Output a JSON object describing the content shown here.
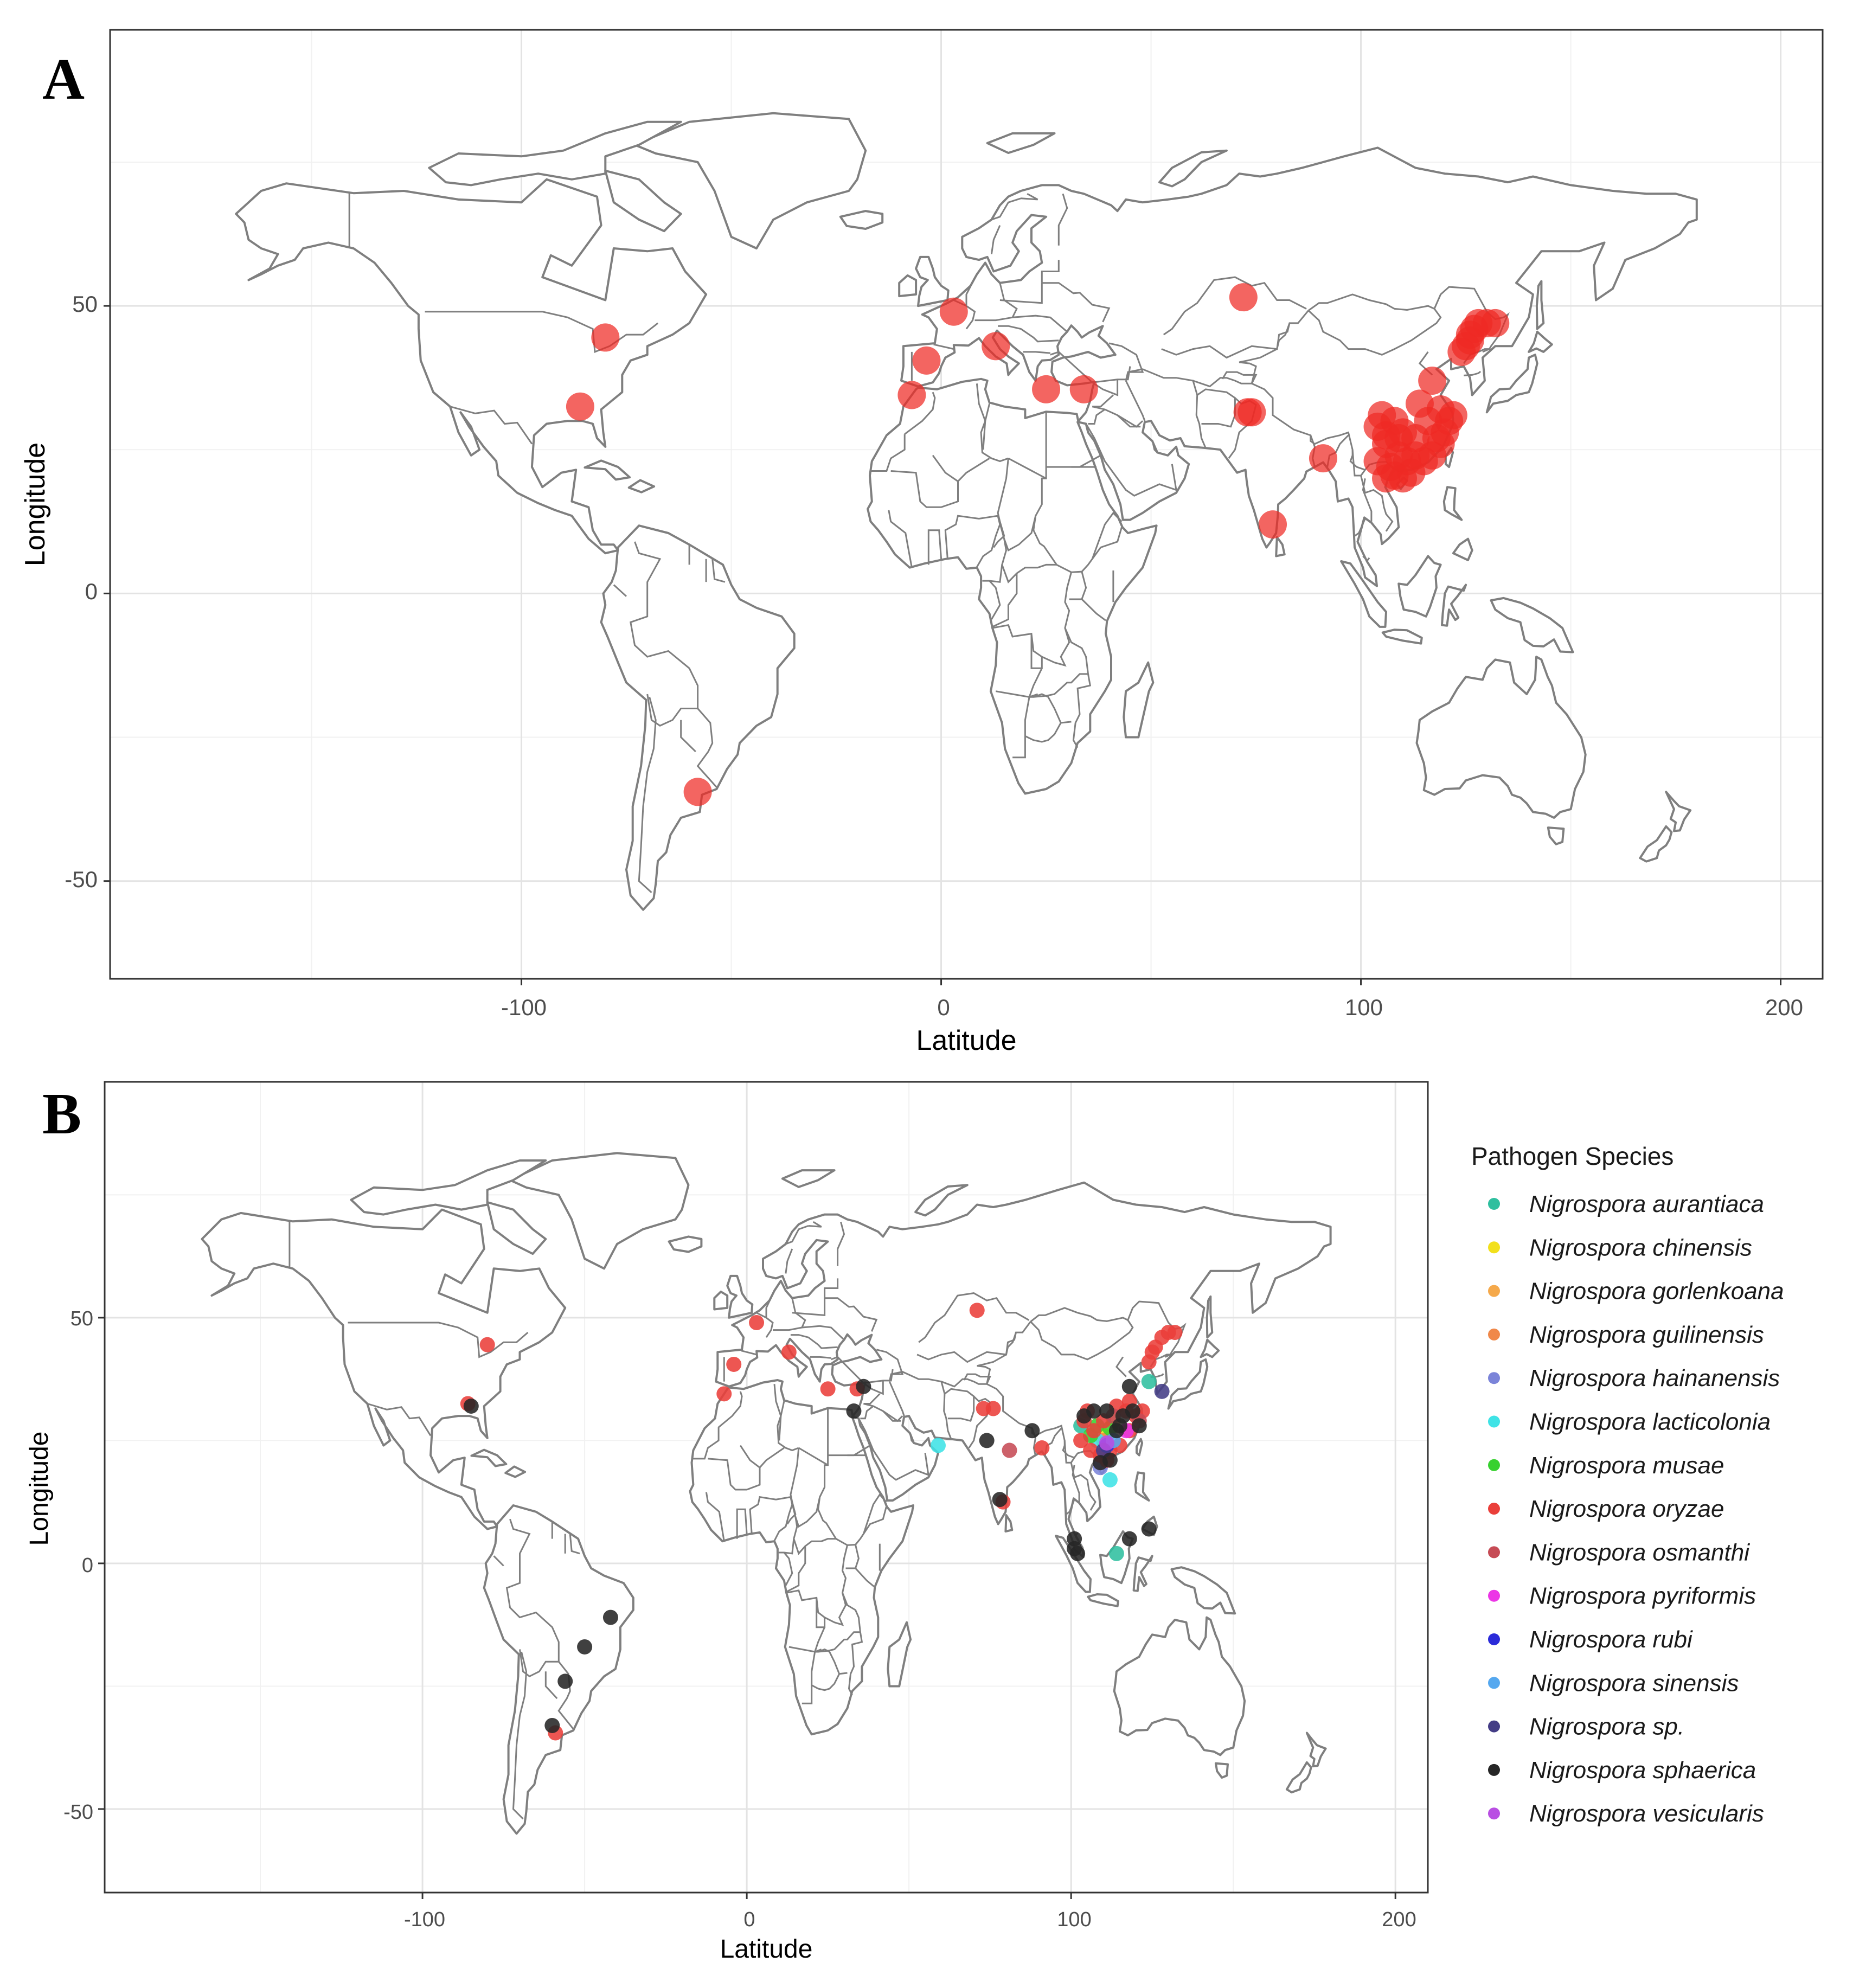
{
  "panels": [
    {
      "letter": "A",
      "xlabel": "Latitude",
      "ylabel": "Longitude",
      "x_ticks": [
        "-100",
        "0",
        "100",
        "200"
      ],
      "y_ticks": [
        "50",
        "0",
        "-50"
      ]
    },
    {
      "letter": "B",
      "xlabel": "Latitude",
      "ylabel": "Longitude",
      "x_ticks": [
        "-100",
        "0",
        "100",
        "200"
      ],
      "y_ticks": [
        "50",
        "0",
        "-50"
      ]
    }
  ],
  "legend": {
    "title": "Pathogen Species",
    "items": [
      {
        "label": "Nigrospora aurantiaca",
        "color": "#2fbf9f"
      },
      {
        "label": "Nigrospora chinensis",
        "color": "#f2e01c"
      },
      {
        "label": "Nigrospora gorlenkoana",
        "color": "#f5a94b"
      },
      {
        "label": "Nigrospora guilinensis",
        "color": "#f0884a"
      },
      {
        "label": "Nigrospora hainanensis",
        "color": "#7b84d9"
      },
      {
        "label": "Nigrospora lacticolonia",
        "color": "#3fe3e6"
      },
      {
        "label": "Nigrospora musae",
        "color": "#37d12f"
      },
      {
        "label": "Nigrospora oryzae",
        "color": "#ea3f3a"
      },
      {
        "label": "Nigrospora osmanthi",
        "color": "#c64b55"
      },
      {
        "label": "Nigrospora pyriformis",
        "color": "#ec36e6"
      },
      {
        "label": "Nigrospora rubi",
        "color": "#2b2bd9"
      },
      {
        "label": "Nigrospora sinensis",
        "color": "#55a8ef"
      },
      {
        "label": "Nigrospora sp.",
        "color": "#443d86"
      },
      {
        "label": "Nigrospora sphaerica",
        "color": "#262626"
      },
      {
        "label": "Nigrospora vesicularis",
        "color": "#b94fe3"
      }
    ]
  },
  "chart_data": [
    {
      "type": "scatter",
      "panel": "A",
      "xlabel": "Latitude",
      "ylabel": "Longitude",
      "xlim": [
        -198,
        210
      ],
      "ylim": [
        -67,
        98
      ],
      "x_ticks": [
        -100,
        0,
        100,
        200
      ],
      "y_ticks": [
        -50,
        0,
        50
      ],
      "grid": true,
      "point_color": "#ee2a24",
      "points": [
        [
          -80,
          44.5
        ],
        [
          -86,
          32.5
        ],
        [
          -58,
          -34.5
        ],
        [
          3,
          49
        ],
        [
          -3.5,
          40.5
        ],
        [
          -7,
          34.5
        ],
        [
          13,
          43
        ],
        [
          25,
          35.5
        ],
        [
          34,
          35.5
        ],
        [
          72,
          51.5
        ],
        [
          73,
          31.5
        ],
        [
          74,
          31.5
        ],
        [
          91,
          23.5
        ],
        [
          79,
          12
        ],
        [
          105,
          31
        ],
        [
          104,
          29
        ],
        [
          108,
          30
        ],
        [
          110,
          28
        ],
        [
          106,
          26
        ],
        [
          104,
          23
        ],
        [
          107,
          22
        ],
        [
          109,
          24
        ],
        [
          111,
          23
        ],
        [
          113,
          24
        ],
        [
          115,
          23
        ],
        [
          112,
          21
        ],
        [
          108,
          20.5
        ],
        [
          110,
          20
        ],
        [
          106,
          20
        ],
        [
          117,
          24
        ],
        [
          119,
          26
        ],
        [
          120,
          28
        ],
        [
          121,
          30
        ],
        [
          119,
          32
        ],
        [
          116,
          30
        ],
        [
          118,
          27
        ],
        [
          114,
          33
        ],
        [
          117,
          37
        ],
        [
          122,
          31
        ],
        [
          106,
          27.5
        ],
        [
          109,
          27
        ],
        [
          113,
          27
        ],
        [
          124,
          42
        ],
        [
          126,
          44
        ],
        [
          127,
          46
        ],
        [
          128,
          47
        ],
        [
          130,
          47
        ],
        [
          132,
          47
        ],
        [
          126,
          45
        ],
        [
          125,
          43
        ]
      ]
    },
    {
      "type": "scatter",
      "panel": "B",
      "xlabel": "Latitude",
      "ylabel": "Longitude",
      "xlim": [
        -198,
        210
      ],
      "ylim": [
        -67,
        98
      ],
      "x_ticks": [
        -100,
        0,
        100,
        200
      ],
      "y_ticks": [
        -50,
        0,
        50
      ],
      "grid": true,
      "legend_title": "Pathogen Species",
      "legend_position": "right",
      "series": [
        {
          "name": "Nigrospora aurantiaca",
          "color": "#2fbf9f",
          "points": [
            [
              114,
              2
            ],
            [
              124,
              37
            ],
            [
              103,
              28
            ]
          ]
        },
        {
          "name": "Nigrospora chinensis",
          "color": "#f2e01c",
          "points": [
            [
              110,
              26
            ]
          ]
        },
        {
          "name": "Nigrospora gorlenkoana",
          "color": "#f5a94b",
          "points": [
            [
              113,
              29
            ]
          ]
        },
        {
          "name": "Nigrospora guilinensis",
          "color": "#f0884a",
          "points": [
            [
              110,
              25
            ]
          ]
        },
        {
          "name": "Nigrospora hainanensis",
          "color": "#7b84d9",
          "points": [
            [
              109,
              19.5
            ]
          ]
        },
        {
          "name": "Nigrospora lacticolonia",
          "color": "#3fe3e6",
          "points": [
            [
              59,
              24
            ],
            [
              112,
              17
            ],
            [
              108,
              25
            ]
          ]
        },
        {
          "name": "Nigrospora musae",
          "color": "#37d12f",
          "points": [
            [
              108,
              28
            ],
            [
              112,
              27.5
            ],
            [
              106,
              26
            ]
          ]
        },
        {
          "name": "Nigrospora oryzae",
          "color": "#ea3f3a",
          "points": [
            [
              -80,
              44.5
            ],
            [
              -86,
              32.5
            ],
            [
              -59,
              -34.5
            ],
            [
              3,
              49
            ],
            [
              -4,
              40.5
            ],
            [
              -7,
              34.5
            ],
            [
              13,
              43
            ],
            [
              25,
              35.5
            ],
            [
              34,
              35.5
            ],
            [
              71,
              51.5
            ],
            [
              73,
              31.5
            ],
            [
              76,
              31.5
            ],
            [
              91,
              23.5
            ],
            [
              79,
              12.5
            ],
            [
              105,
              31
            ],
            [
              104,
              29
            ],
            [
              107,
              27
            ],
            [
              110,
              29
            ],
            [
              106,
              23
            ],
            [
              109,
              22
            ],
            [
              112,
              23
            ],
            [
              115,
              24
            ],
            [
              118,
              27
            ],
            [
              120,
              30
            ],
            [
              122,
              31
            ],
            [
              117,
              31
            ],
            [
              114,
              32
            ],
            [
              124,
              41
            ],
            [
              126,
              44
            ],
            [
              128,
              46
            ],
            [
              130,
              47
            ],
            [
              132,
              47
            ],
            [
              125,
              43
            ],
            [
              103,
              25
            ],
            [
              111,
              21
            ],
            [
              118,
              33
            ]
          ]
        },
        {
          "name": "Nigrospora osmanthi",
          "color": "#c64b55",
          "points": [
            [
              113,
              30
            ],
            [
              121,
              29
            ],
            [
              81,
              23
            ]
          ]
        },
        {
          "name": "Nigrospora pyriformis",
          "color": "#ec36e6",
          "points": [
            [
              117,
              27
            ]
          ]
        },
        {
          "name": "Nigrospora rubi",
          "color": "#2b2bd9",
          "points": [
            [
              111,
              24
            ]
          ]
        },
        {
          "name": "Nigrospora sinensis",
          "color": "#55a8ef",
          "points": [
            [
              113,
              25
            ]
          ]
        },
        {
          "name": "Nigrospora sp.",
          "color": "#443d86",
          "points": [
            [
              128,
              35
            ],
            [
              110,
              23
            ]
          ]
        },
        {
          "name": "Nigrospora sphaerica",
          "color": "#262626",
          "points": [
            [
              -85,
              32
            ],
            [
              -60,
              -33
            ],
            [
              -56,
              -24
            ],
            [
              -50,
              -17
            ],
            [
              -42,
              -11
            ],
            [
              33,
              31
            ],
            [
              36,
              36
            ],
            [
              74,
              25
            ],
            [
              78,
              13
            ],
            [
              88,
              27
            ],
            [
              101,
              3
            ],
            [
              102,
              2
            ],
            [
              101,
              5
            ],
            [
              118,
              5
            ],
            [
              124,
              7
            ],
            [
              107,
              31
            ],
            [
              111,
              31
            ],
            [
              115,
              28
            ],
            [
              118,
              36
            ],
            [
              121,
              28
            ],
            [
              109,
              20.5
            ],
            [
              112,
              21
            ],
            [
              116,
              30
            ],
            [
              104,
              30
            ],
            [
              119,
              31
            ],
            [
              114,
              27
            ]
          ]
        },
        {
          "name": "Nigrospora vesicularis",
          "color": "#b94fe3",
          "points": [
            [
              111,
              24.5
            ]
          ]
        }
      ]
    }
  ]
}
